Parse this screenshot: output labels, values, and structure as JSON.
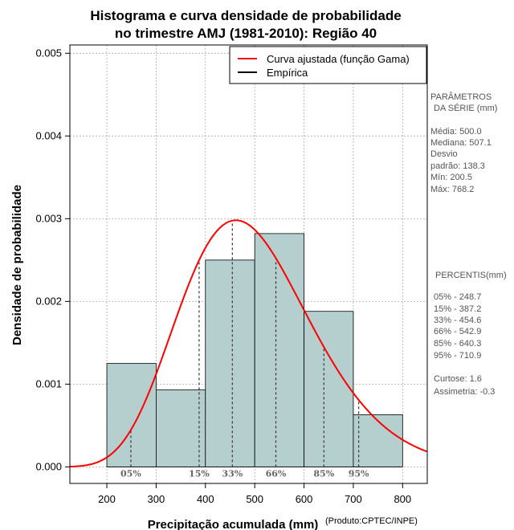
{
  "chart_data": {
    "type": "histogram",
    "title_line1": "Histograma e curva densidade de probabilidade",
    "title_line2": "no trimestre AMJ (1981-2010): Região 40",
    "xlabel": "Precipitação acumulada (mm)",
    "ylabel": "Densidade de probabilidade",
    "credit": "(Produto:CPTEC/INPE)",
    "xlim": [
      125,
      850
    ],
    "ylim": [
      -0.0002,
      0.0051
    ],
    "x_ticks": [
      200,
      300,
      400,
      500,
      600,
      700,
      800
    ],
    "y_ticks": [
      0.0,
      0.001,
      0.002,
      0.003,
      0.004,
      0.005
    ],
    "y_tick_labels": [
      "0.000",
      "0.001",
      "0.002",
      "0.003",
      "0.004",
      "0.005"
    ],
    "grid": true,
    "bins": [
      {
        "from": 200,
        "to": 300,
        "density": 0.00125
      },
      {
        "from": 300,
        "to": 400,
        "density": 0.00093
      },
      {
        "from": 400,
        "to": 500,
        "density": 0.0025
      },
      {
        "from": 500,
        "to": 600,
        "density": 0.00282
      },
      {
        "from": 600,
        "to": 700,
        "density": 0.00188
      },
      {
        "from": 700,
        "to": 800,
        "density": 0.00063
      }
    ],
    "bar_color": "#b5cece",
    "gamma_fit": {
      "mean": 500.0,
      "sd": 138.3,
      "color": "#ff0000"
    },
    "percentile_markers": [
      {
        "label": "05%",
        "value": 248.7
      },
      {
        "label": "15%",
        "value": 387.2
      },
      {
        "label": "33%",
        "value": 454.6
      },
      {
        "label": "66%",
        "value": 542.9
      },
      {
        "label": "85%",
        "value": 640.3
      },
      {
        "label": "95%",
        "value": 710.9
      }
    ],
    "legend": {
      "position": "top-right",
      "entries": [
        {
          "label": "Curva ajustada (função Gama)",
          "color": "#ff0000"
        },
        {
          "label": "Empírica",
          "color": "#000000"
        }
      ]
    }
  },
  "side_panel": {
    "params_title_1": "PARÂMETROS",
    "params_title_2": "DA SÉRIE (mm)",
    "media": "Média:  500.0",
    "mediana": "Mediana:  507.1",
    "desvio_1": "Desvio",
    "desvio_2": "padrão:  138.3",
    "min": "Mín:  200.5",
    "max": "Máx:  768.2",
    "percentis_title": "PERCENTIS(mm)",
    "p05": "05% -   248.7",
    "p15": "15% -   387.2",
    "p33": "33% -   454.6",
    "p66": "66% -   542.9",
    "p85": "85% -   640.3",
    "p95": "95% -   710.9",
    "curtose": "Curtose:  1.6",
    "assimetria": "Assimetria:  -0.3"
  }
}
